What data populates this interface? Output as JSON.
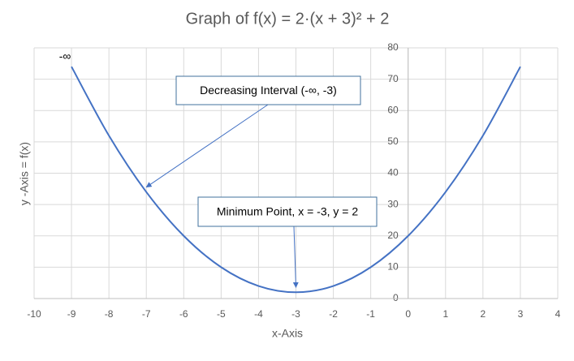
{
  "chart_data": {
    "type": "line",
    "title": "Graph of f(x) = 2·(x + 3)² + 2",
    "x_label": "x-Axis",
    "y_label": "y -Axis = f(x)",
    "x": [
      -9,
      -8,
      -7,
      -6,
      -5,
      -4,
      -3,
      -2,
      -1,
      0,
      1,
      2,
      3
    ],
    "series": [
      {
        "name": "f(x)",
        "color": "#4472c4",
        "values": [
          74,
          52,
          34,
          20,
          10,
          4,
          2,
          4,
          10,
          20,
          34,
          52,
          74
        ]
      }
    ],
    "xlim": [
      -10,
      4
    ],
    "xticks": [
      -10,
      -9,
      -8,
      -7,
      -6,
      -5,
      -4,
      -3,
      -2,
      -1,
      0,
      1,
      2,
      3,
      4
    ],
    "ylim": [
      0,
      80
    ],
    "yticks": [
      0,
      10,
      20,
      30,
      40,
      50,
      60,
      70,
      80
    ],
    "grid": true,
    "annotations": [
      {
        "text": "-∞",
        "x": -9,
        "y": 74,
        "boxed": false
      },
      {
        "text": "Decreasing Interval (-∞, -3)",
        "x": -7,
        "y": 34,
        "boxed": true
      },
      {
        "text": "Minimum Point, x = -3, y = 2",
        "x": -3,
        "y": 2,
        "boxed": true
      }
    ]
  }
}
